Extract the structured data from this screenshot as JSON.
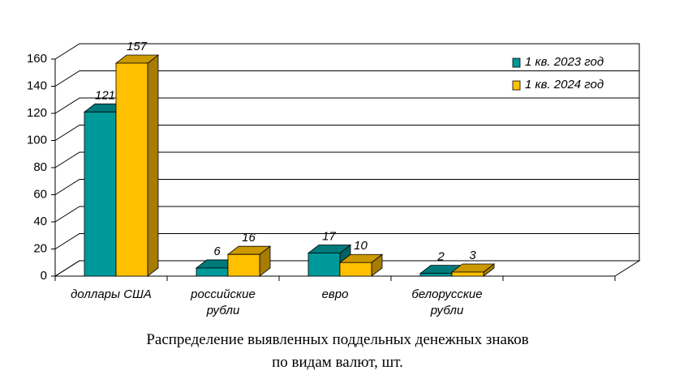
{
  "chart_data": {
    "type": "bar3d",
    "title": "Распределение выявленных поддельных денежных знаков\nпо видам валют, шт.",
    "categories": [
      "доллары США",
      "российские\nрубли",
      "евро",
      "белорусские\nрубли",
      null
    ],
    "series": [
      {
        "name": "1 кв. 2023 год",
        "color": "#009999",
        "values": [
          121,
          6,
          17,
          2,
          null
        ]
      },
      {
        "name": "1 кв. 2024 год",
        "color": "#ffc000",
        "values": [
          157,
          16,
          10,
          3,
          null
        ]
      }
    ],
    "ylim": [
      0,
      160
    ],
    "yticks": [
      0,
      20,
      40,
      60,
      80,
      100,
      120,
      140,
      160
    ],
    "grid": true,
    "legend": "top-right"
  }
}
